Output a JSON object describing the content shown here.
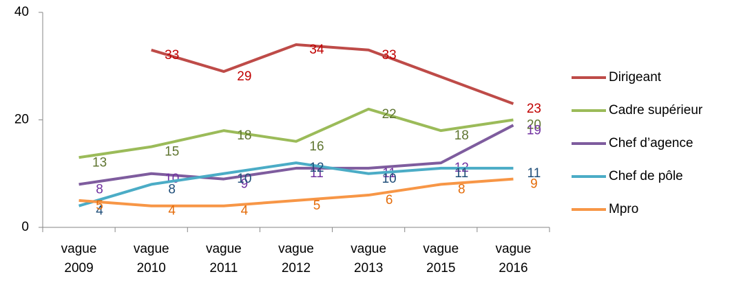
{
  "chart_data": {
    "type": "line",
    "categories": [
      "vague 2009",
      "vague 2010",
      "vague 2011",
      "vague 2012",
      "vague 2013",
      "vague 2015",
      "vague 2016"
    ],
    "series": [
      {
        "name": "Dirigeant",
        "color": "#be4b48",
        "label_color": "#c00000",
        "values": [
          null,
          33,
          29,
          34,
          33,
          28,
          23
        ],
        "value_labels": [
          null,
          "33",
          "29",
          "34",
          "33",
          null,
          "23"
        ]
      },
      {
        "name": "Cadre supérieur",
        "color": "#9bbb59",
        "label_color": "#5f7530",
        "values": [
          13,
          15,
          18,
          16,
          22,
          18,
          20
        ]
      },
      {
        "name": "Chef d’agence",
        "color": "#7e5c9e",
        "label_color": "#7030a0",
        "values": [
          8,
          10,
          9,
          11,
          11,
          12,
          19
        ]
      },
      {
        "name": "Chef de pôle",
        "color": "#4bacc6",
        "label_color": "#1f4e79",
        "values": [
          4,
          8,
          10,
          12,
          10,
          11,
          11
        ]
      },
      {
        "name": "Mpro",
        "color": "#f79646",
        "label_color": "#e46c0a",
        "values": [
          5,
          4,
          4,
          5,
          6,
          8,
          9
        ]
      }
    ],
    "ylim": [
      0,
      40
    ],
    "yticks": [
      0,
      20,
      40
    ],
    "legend": "right"
  }
}
